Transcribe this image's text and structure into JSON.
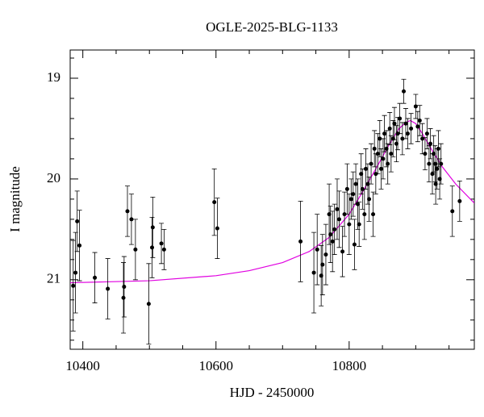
{
  "chart_data": {
    "type": "scatter",
    "title": "OGLE-2025-BLG-1133",
    "x_label": "HJD - 2450000",
    "y_label": "I magnitude",
    "xlim": [
      10381,
      10988
    ],
    "ylim": [
      21.69,
      18.72
    ],
    "xticks": [
      10400,
      10600,
      10800
    ],
    "xticks_minor": [
      10450,
      10500,
      10550,
      10650,
      10700,
      10750,
      10850,
      10900,
      10950
    ],
    "yticks": [
      19,
      20,
      21
    ],
    "yticks_minor": [
      18.8,
      19.2,
      19.4,
      19.6,
      19.8,
      20.2,
      20.4,
      20.6,
      20.8,
      21.2,
      21.4,
      21.6
    ],
    "series": [
      {
        "color": "#000000",
        "x": [
          10385.5,
          10389,
          10391.5,
          10395,
          10418,
          10437.5,
          10461,
          10462,
          10467,
          10473,
          10479,
          10499,
          10504,
          10505,
          10518,
          10522,
          10597.5,
          10602,
          10727,
          10747,
          10752,
          10758,
          10760,
          10765,
          10770,
          10772,
          10775,
          10778,
          10782,
          10785,
          10790,
          10793,
          10797,
          10800,
          10803,
          10806,
          10808,
          10810,
          10813,
          10815,
          10818,
          10820,
          10823,
          10825,
          10828,
          10830,
          10833,
          10836,
          10838,
          10840,
          10843,
          10846,
          10848,
          10851,
          10853,
          10856,
          10858,
          10861,
          10863,
          10866,
          10868,
          10871,
          10873,
          10876,
          10880,
          10882,
          10885,
          10888,
          10893,
          10900,
          10903,
          10906,
          10910,
          10914,
          10917,
          10920,
          10922,
          10925,
          10927,
          10929,
          10930,
          10932,
          10934,
          10936,
          10938,
          10955,
          10966
        ],
        "values": [
          21.06,
          20.93,
          20.42,
          20.66,
          20.98,
          21.09,
          21.18,
          21.07,
          20.32,
          20.4,
          20.7,
          21.24,
          20.68,
          20.48,
          20.64,
          20.7,
          20.23,
          20.49,
          20.62,
          20.93,
          20.7,
          20.96,
          20.85,
          20.75,
          20.35,
          20.55,
          20.62,
          20.5,
          20.3,
          20.4,
          20.72,
          20.35,
          20.1,
          20.45,
          20.2,
          20.15,
          20.65,
          20.05,
          20.25,
          20.45,
          19.95,
          20.1,
          20.35,
          19.9,
          20.05,
          20.2,
          19.85,
          20.35,
          19.7,
          19.95,
          19.75,
          19.6,
          19.9,
          19.8,
          19.55,
          19.7,
          19.85,
          19.5,
          19.75,
          19.6,
          19.45,
          19.65,
          19.55,
          19.4,
          19.6,
          19.13,
          19.45,
          19.55,
          19.5,
          19.28,
          19.48,
          19.42,
          19.6,
          19.75,
          19.55,
          19.85,
          19.65,
          19.95,
          19.75,
          19.85,
          20.05,
          19.9,
          19.7,
          20.0,
          19.85,
          20.32,
          20.22
        ],
        "errors": [
          0.45,
          0.4,
          0.3,
          0.35,
          0.25,
          0.3,
          0.35,
          0.3,
          0.25,
          0.25,
          0.3,
          0.4,
          0.3,
          0.3,
          0.2,
          0.2,
          0.33,
          0.3,
          0.4,
          0.4,
          0.35,
          0.3,
          0.3,
          0.3,
          0.3,
          0.28,
          0.3,
          0.25,
          0.3,
          0.28,
          0.25,
          0.22,
          0.25,
          0.3,
          0.2,
          0.22,
          0.25,
          0.2,
          0.25,
          0.22,
          0.2,
          0.2,
          0.25,
          0.2,
          0.2,
          0.22,
          0.2,
          0.22,
          0.18,
          0.2,
          0.2,
          0.18,
          0.2,
          0.2,
          0.18,
          0.18,
          0.2,
          0.16,
          0.18,
          0.18,
          0.16,
          0.18,
          0.16,
          0.15,
          0.16,
          0.12,
          0.15,
          0.15,
          0.15,
          0.12,
          0.15,
          0.15,
          0.15,
          0.16,
          0.15,
          0.18,
          0.15,
          0.2,
          0.18,
          0.18,
          0.2,
          0.2,
          0.18,
          0.2,
          0.2,
          0.25,
          0.2
        ]
      }
    ],
    "model": {
      "color": "#e000e0",
      "x": [
        10381,
        10500,
        10600,
        10650,
        10700,
        10740,
        10770,
        10800,
        10820,
        10840,
        10860,
        10875,
        10885,
        10892,
        10900,
        10910,
        10925,
        10940,
        10960,
        10988
      ],
      "values": [
        21.03,
        21.01,
        20.96,
        20.91,
        20.83,
        20.72,
        20.58,
        20.35,
        20.13,
        19.9,
        19.66,
        19.5,
        19.44,
        19.42,
        19.45,
        19.55,
        19.72,
        19.88,
        20.05,
        20.24
      ]
    }
  }
}
